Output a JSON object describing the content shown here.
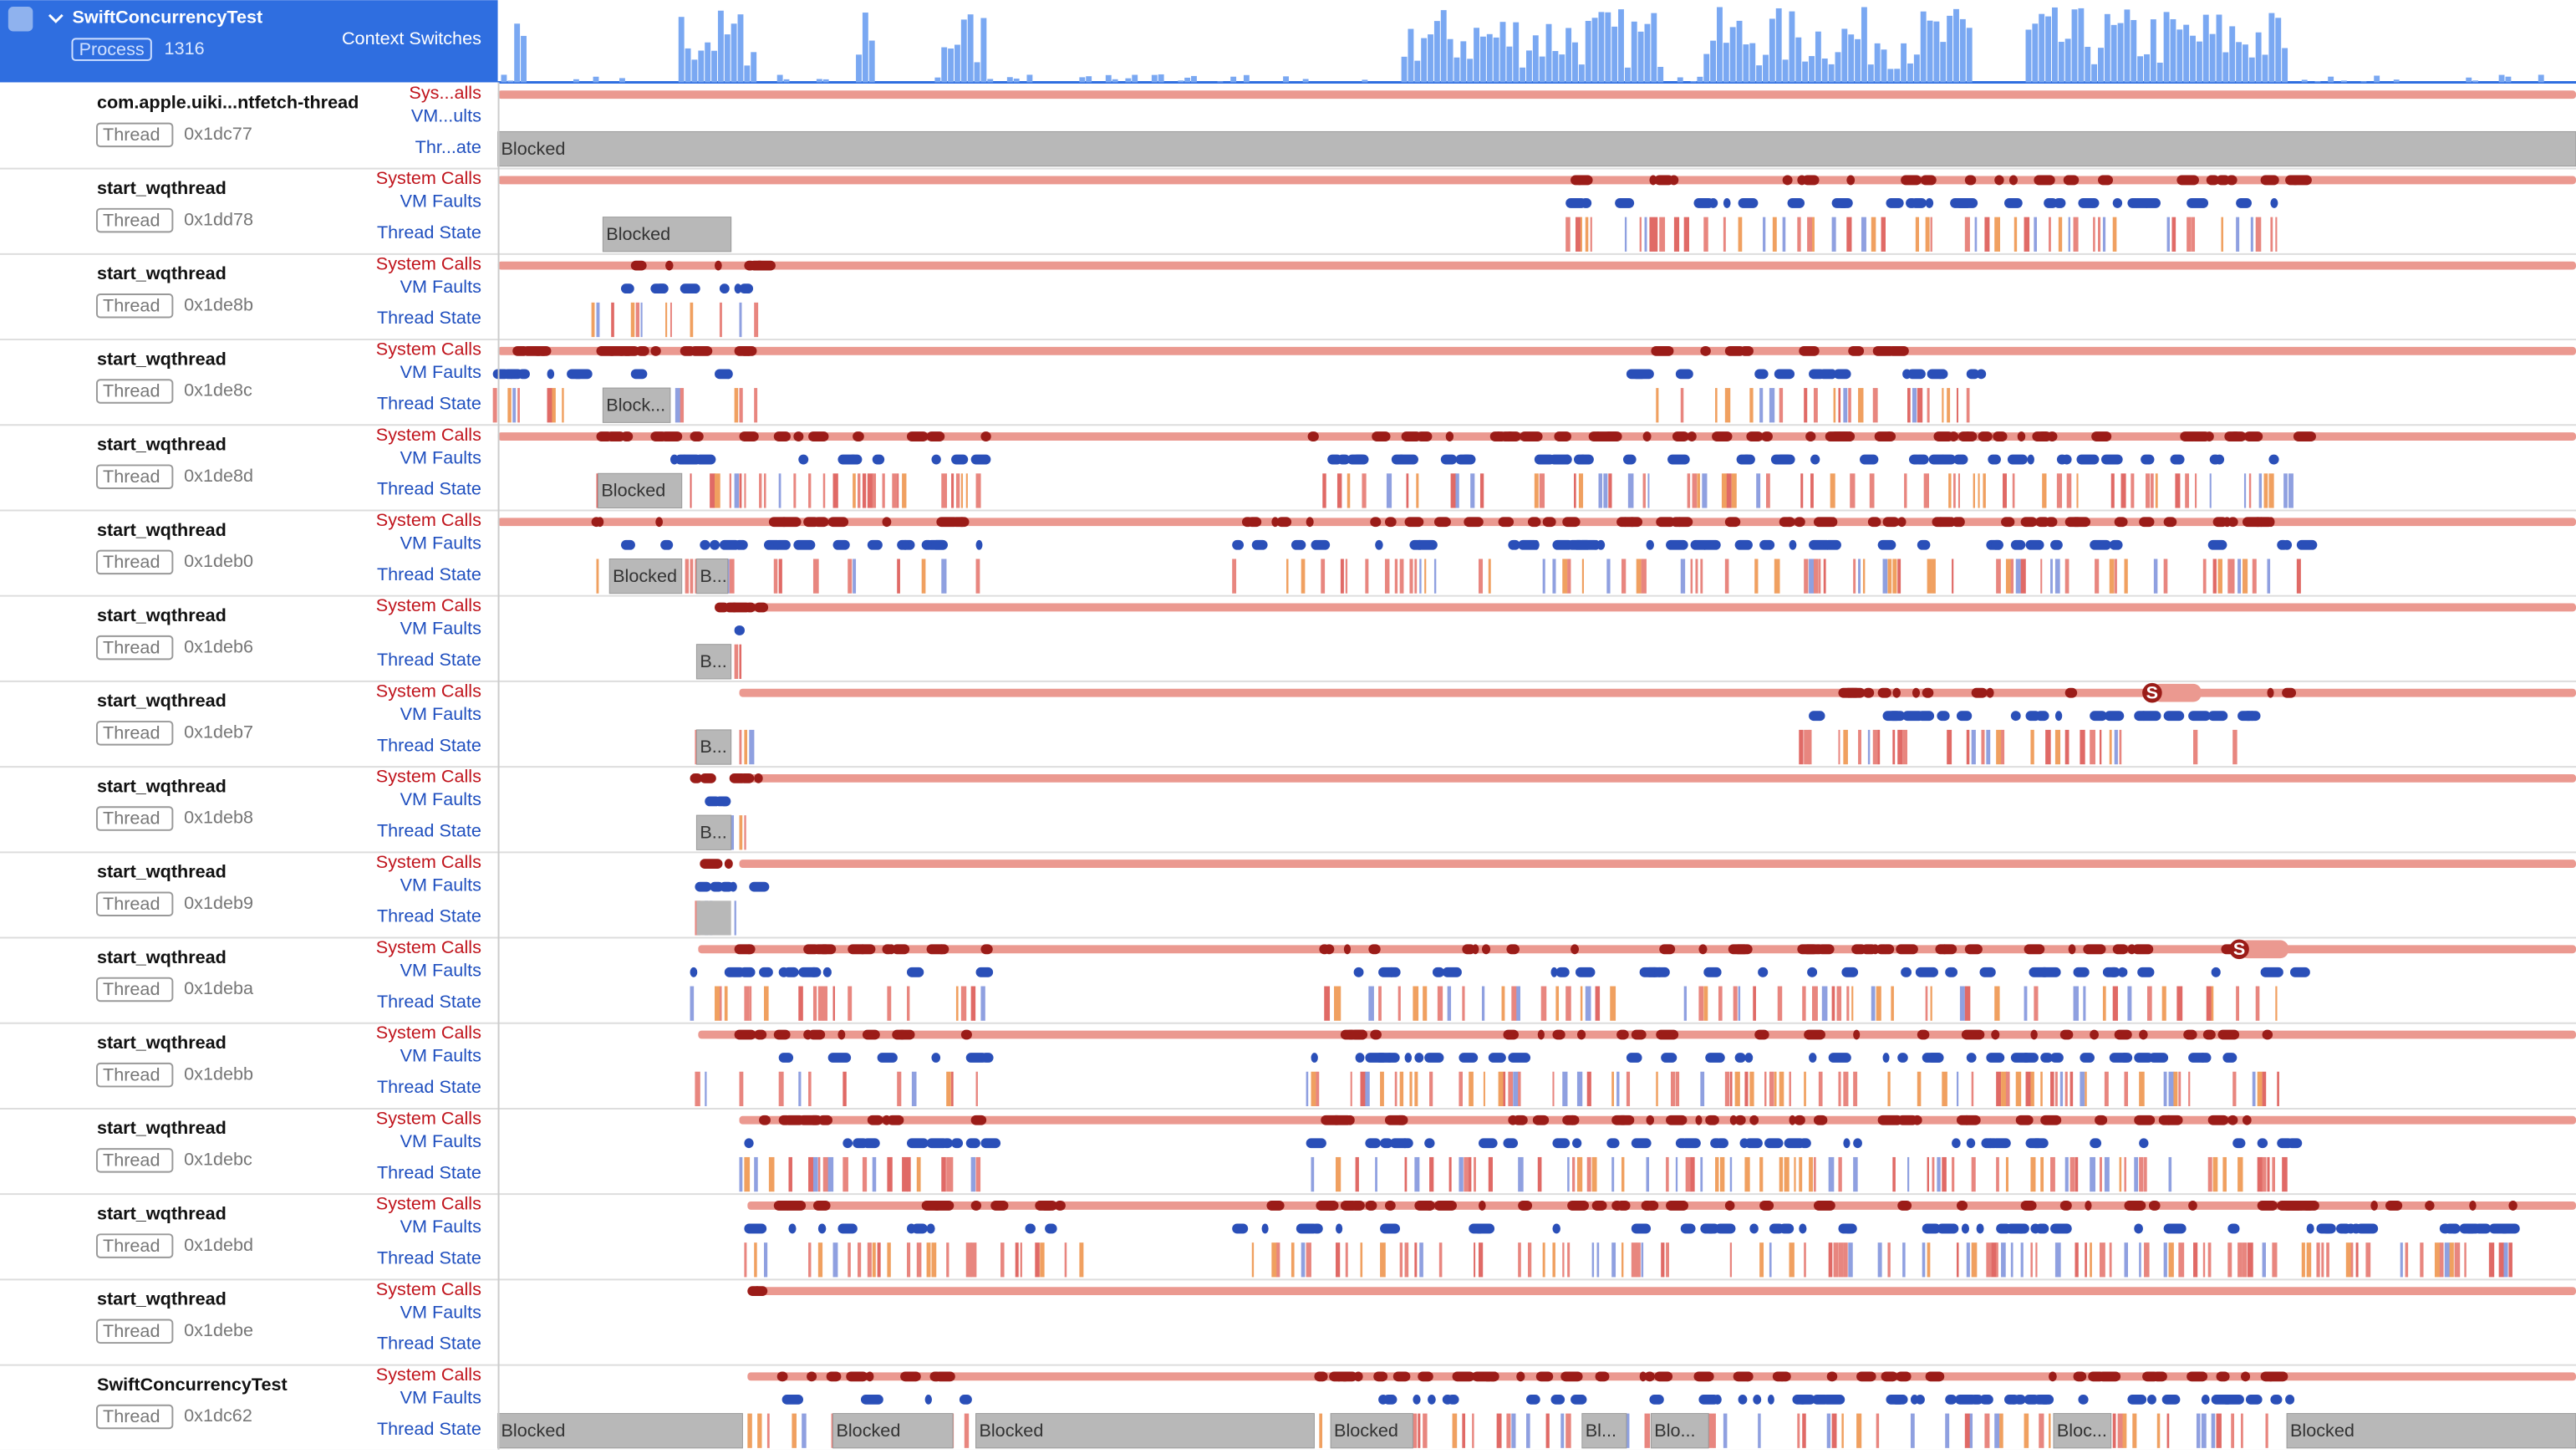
{
  "header": {
    "title": "SwiftConcurrencyTest",
    "badge": "Process",
    "pid": "1316",
    "track": "Context Switches"
  },
  "rows": [
    {
      "name": "com.apple.uiki...ntfetch-thread",
      "badge": "Thread",
      "id": "0x1dc77",
      "tracks": [
        "Sys...alls",
        "VM...ults",
        "Thr...ate"
      ],
      "blocked": [
        "Blocked"
      ]
    },
    {
      "name": "start_wqthread",
      "badge": "Thread",
      "id": "0x1dd78",
      "tracks": [
        "System Calls",
        "VM Faults",
        "Thread State"
      ],
      "blocked": [
        "Blocked"
      ]
    },
    {
      "name": "start_wqthread",
      "badge": "Thread",
      "id": "0x1de8b",
      "tracks": [
        "System Calls",
        "VM Faults",
        "Thread State"
      ],
      "blocked": []
    },
    {
      "name": "start_wqthread",
      "badge": "Thread",
      "id": "0x1de8c",
      "tracks": [
        "System Calls",
        "VM Faults",
        "Thread State"
      ],
      "blocked": [
        "Block..."
      ]
    },
    {
      "name": "start_wqthread",
      "badge": "Thread",
      "id": "0x1de8d",
      "tracks": [
        "System Calls",
        "VM Faults",
        "Thread State"
      ],
      "blocked": [
        "Blocked"
      ]
    },
    {
      "name": "start_wqthread",
      "badge": "Thread",
      "id": "0x1deb0",
      "tracks": [
        "System Calls",
        "VM Faults",
        "Thread State"
      ],
      "blocked": [
        "Blocked",
        "B..."
      ]
    },
    {
      "name": "start_wqthread",
      "badge": "Thread",
      "id": "0x1deb6",
      "tracks": [
        "System Calls",
        "VM Faults",
        "Thread State"
      ],
      "blocked": [
        "B..."
      ]
    },
    {
      "name": "start_wqthread",
      "badge": "Thread",
      "id": "0x1deb7",
      "tracks": [
        "System Calls",
        "VM Faults",
        "Thread State"
      ],
      "blocked": [
        "B..."
      ],
      "markers": [
        "S"
      ]
    },
    {
      "name": "start_wqthread",
      "badge": "Thread",
      "id": "0x1deb8",
      "tracks": [
        "System Calls",
        "VM Faults",
        "Thread State"
      ],
      "blocked": [
        "B..."
      ]
    },
    {
      "name": "start_wqthread",
      "badge": "Thread",
      "id": "0x1deb9",
      "tracks": [
        "System Calls",
        "VM Faults",
        "Thread State"
      ],
      "blocked": []
    },
    {
      "name": "start_wqthread",
      "badge": "Thread",
      "id": "0x1deba",
      "tracks": [
        "System Calls",
        "VM Faults",
        "Thread State"
      ],
      "blocked": [],
      "markers": [
        "S"
      ]
    },
    {
      "name": "start_wqthread",
      "badge": "Thread",
      "id": "0x1debb",
      "tracks": [
        "System Calls",
        "VM Faults",
        "Thread State"
      ],
      "blocked": []
    },
    {
      "name": "start_wqthread",
      "badge": "Thread",
      "id": "0x1debc",
      "tracks": [
        "System Calls",
        "VM Faults",
        "Thread State"
      ],
      "blocked": []
    },
    {
      "name": "start_wqthread",
      "badge": "Thread",
      "id": "0x1debd",
      "tracks": [
        "System Calls",
        "VM Faults",
        "Thread State"
      ],
      "blocked": []
    },
    {
      "name": "start_wqthread",
      "badge": "Thread",
      "id": "0x1debe",
      "tracks": [
        "System Calls",
        "VM Faults",
        "Thread State"
      ],
      "blocked": []
    },
    {
      "name": "SwiftConcurrencyTest",
      "badge": "Thread",
      "id": "0x1dc62",
      "tracks": [
        "System Calls",
        "VM Faults",
        "Thread State"
      ],
      "blocked": [
        "Blocked",
        "Blocked",
        "Blocked",
        "Blocked",
        "Bl...",
        "Blo...",
        "Bloc...",
        "Blocked"
      ]
    }
  ]
}
